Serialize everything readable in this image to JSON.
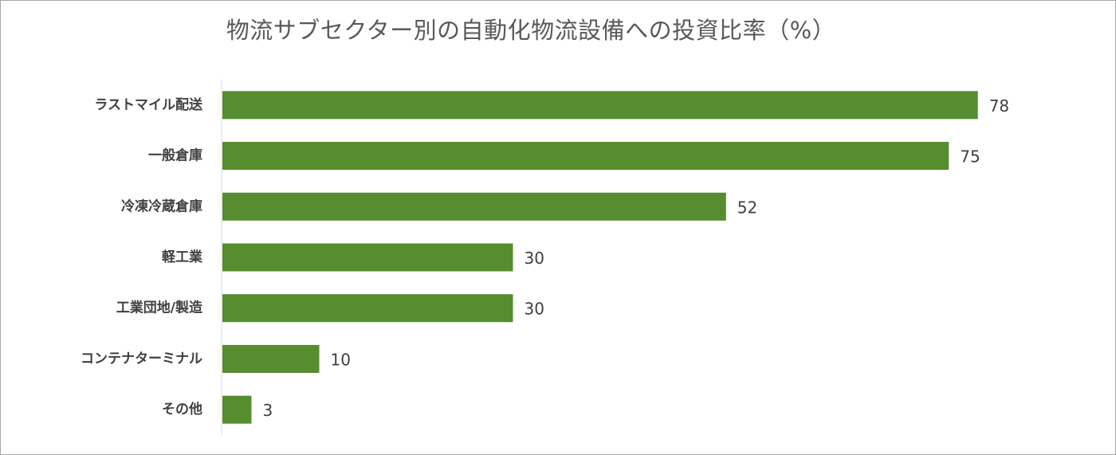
{
  "chart_data": {
    "type": "bar",
    "orientation": "horizontal",
    "title": "物流サブセクター別の自動化物流設備への投資比率（%）",
    "categories": [
      "ラストマイル配送",
      "一般倉庫",
      "冷凍冷蔵倉庫",
      "軽工業",
      "工業団地/製造",
      "コンテナターミナル",
      "その他"
    ],
    "values": [
      78,
      75,
      52,
      30,
      30,
      10,
      3
    ],
    "xlim": [
      0,
      100
    ],
    "xlabel": "",
    "ylabel": "",
    "grid": false,
    "legend": "none",
    "data_labels": true,
    "bar_color": "#568d2f"
  }
}
